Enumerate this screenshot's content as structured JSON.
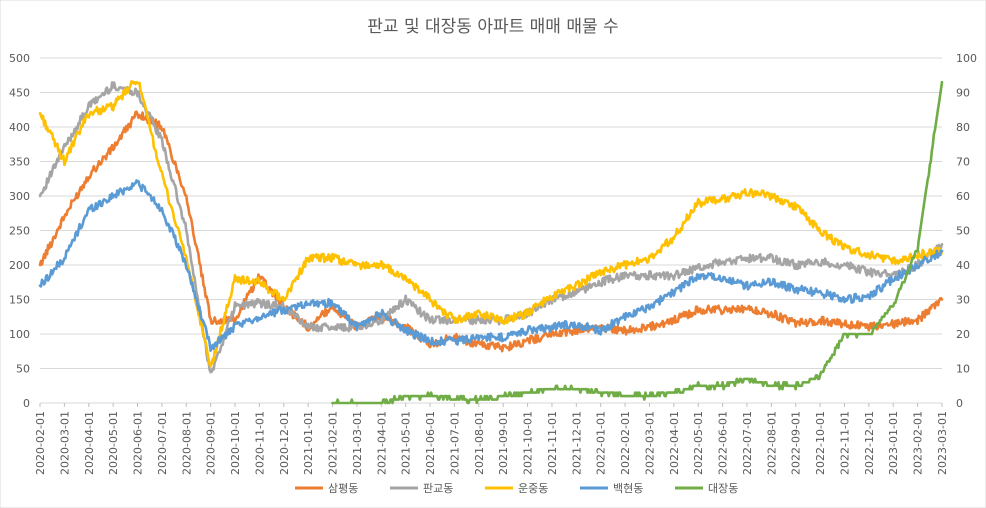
{
  "chart_data": {
    "type": "line",
    "title": "판교 및 대장동 아파트 매매 매물 수",
    "grid": true,
    "legend_position": "bottom",
    "left_axis": {
      "min": 0,
      "max": 500,
      "ticks": [
        "0",
        "50",
        "100",
        "150",
        "200",
        "250",
        "300",
        "350",
        "400",
        "450",
        "500"
      ]
    },
    "right_axis": {
      "min": 0,
      "max": 100,
      "ticks": [
        "0",
        "10",
        "20",
        "30",
        "40",
        "50",
        "60",
        "70",
        "80",
        "90",
        "100"
      ]
    },
    "categories": [
      "2020-02-01",
      "2020-03-01",
      "2020-04-01",
      "2020-05-01",
      "2020-06-01",
      "2020-07-01",
      "2020-08-01",
      "2020-09-01",
      "2020-10-01",
      "2020-11-01",
      "2020-12-01",
      "2021-01-01",
      "2021-02-01",
      "2021-03-01",
      "2021-04-01",
      "2021-05-01",
      "2021-06-01",
      "2021-07-01",
      "2021-08-01",
      "2021-09-01",
      "2021-10-01",
      "2021-11-01",
      "2021-12-01",
      "2022-01-01",
      "2022-02-01",
      "2022-03-01",
      "2022-04-01",
      "2022-05-01",
      "2022-06-01",
      "2022-07-01",
      "2022-08-01",
      "2022-09-01",
      "2022-10-01",
      "2022-11-01",
      "2022-12-01",
      "2023-01-01",
      "2023-02-01",
      "2023-03-01"
    ],
    "series": [
      {
        "name": "삼평동",
        "axis": "left",
        "color": "#ED7D31",
        "values": [
          200,
          270,
          330,
          370,
          420,
          400,
          300,
          120,
          120,
          185,
          140,
          110,
          140,
          110,
          125,
          110,
          85,
          95,
          85,
          80,
          90,
          100,
          105,
          110,
          105,
          110,
          120,
          135,
          135,
          135,
          130,
          115,
          120,
          115,
          110,
          115,
          120,
          150
        ]
      },
      {
        "name": "판교동",
        "axis": "left",
        "color": "#A5A5A5",
        "values": [
          300,
          370,
          430,
          460,
          450,
          380,
          250,
          40,
          140,
          145,
          140,
          110,
          110,
          110,
          120,
          150,
          120,
          120,
          120,
          120,
          130,
          150,
          160,
          175,
          185,
          185,
          185,
          195,
          205,
          210,
          210,
          200,
          205,
          200,
          190,
          185,
          200,
          230
        ]
      },
      {
        "name": "운중동",
        "axis": "left",
        "color": "#FFC000",
        "values": [
          420,
          350,
          420,
          430,
          470,
          330,
          210,
          50,
          180,
          175,
          150,
          210,
          210,
          200,
          200,
          180,
          150,
          120,
          130,
          120,
          130,
          155,
          170,
          190,
          200,
          210,
          240,
          290,
          295,
          305,
          300,
          285,
          250,
          225,
          215,
          205,
          215,
          220
        ]
      },
      {
        "name": "백현동",
        "axis": "left",
        "color": "#5B9BD5",
        "values": [
          170,
          210,
          280,
          300,
          320,
          280,
          200,
          80,
          110,
          125,
          135,
          145,
          145,
          110,
          130,
          105,
          90,
          90,
          95,
          95,
          105,
          110,
          115,
          105,
          125,
          140,
          160,
          185,
          180,
          170,
          175,
          165,
          160,
          150,
          155,
          180,
          200,
          220
        ]
      },
      {
        "name": "대장동",
        "axis": "right",
        "color": "#70AD47",
        "values": [
          null,
          null,
          null,
          null,
          null,
          null,
          null,
          null,
          null,
          null,
          null,
          null,
          0,
          0,
          0,
          2,
          2,
          1,
          1,
          2,
          3,
          4,
          4,
          3,
          2,
          2,
          3,
          5,
          5,
          7,
          5,
          5,
          8,
          20,
          20,
          28,
          45,
          93
        ]
      }
    ]
  }
}
